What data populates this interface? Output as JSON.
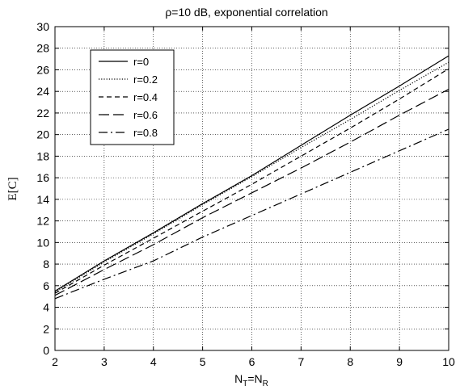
{
  "chart_data": {
    "type": "line",
    "title": "ρ=10 dB, exponential correlation",
    "ylabel": "E[C]",
    "xlabel_main": "N",
    "xlabel_sub1": "T",
    "xlabel_eq": "=N",
    "xlabel_sub2": "R",
    "xlim": [
      2,
      10
    ],
    "ylim": [
      0,
      30
    ],
    "xticks": [
      2,
      3,
      4,
      5,
      6,
      7,
      8,
      9,
      10
    ],
    "yticks": [
      0,
      2,
      4,
      6,
      8,
      10,
      12,
      14,
      16,
      18,
      20,
      22,
      24,
      26,
      28,
      30
    ],
    "grid": true,
    "legend_position": "top-left",
    "x": [
      2,
      3,
      4,
      5,
      6,
      7,
      8,
      9,
      10
    ],
    "series": [
      {
        "name": "r=0",
        "dash": "solid",
        "values": [
          5.5,
          8.3,
          10.9,
          13.6,
          16.2,
          19.0,
          21.8,
          24.5,
          27.3
        ]
      },
      {
        "name": "r=0.2",
        "dash": "dotted",
        "values": [
          5.4,
          8.2,
          10.8,
          13.5,
          16.1,
          18.8,
          21.4,
          24.1,
          26.7
        ]
      },
      {
        "name": "r=0.4",
        "dash": "dashed",
        "values": [
          5.3,
          7.9,
          10.4,
          12.9,
          15.4,
          18.0,
          20.6,
          23.3,
          26.1
        ]
      },
      {
        "name": "r=0.6",
        "dash": "longdash",
        "values": [
          5.1,
          7.5,
          9.8,
          12.3,
          14.6,
          16.9,
          19.3,
          21.8,
          24.2
        ]
      },
      {
        "name": "r=0.8",
        "dash": "dashdot",
        "values": [
          4.8,
          6.6,
          8.3,
          10.5,
          12.5,
          14.5,
          16.5,
          18.5,
          20.5
        ]
      }
    ]
  }
}
